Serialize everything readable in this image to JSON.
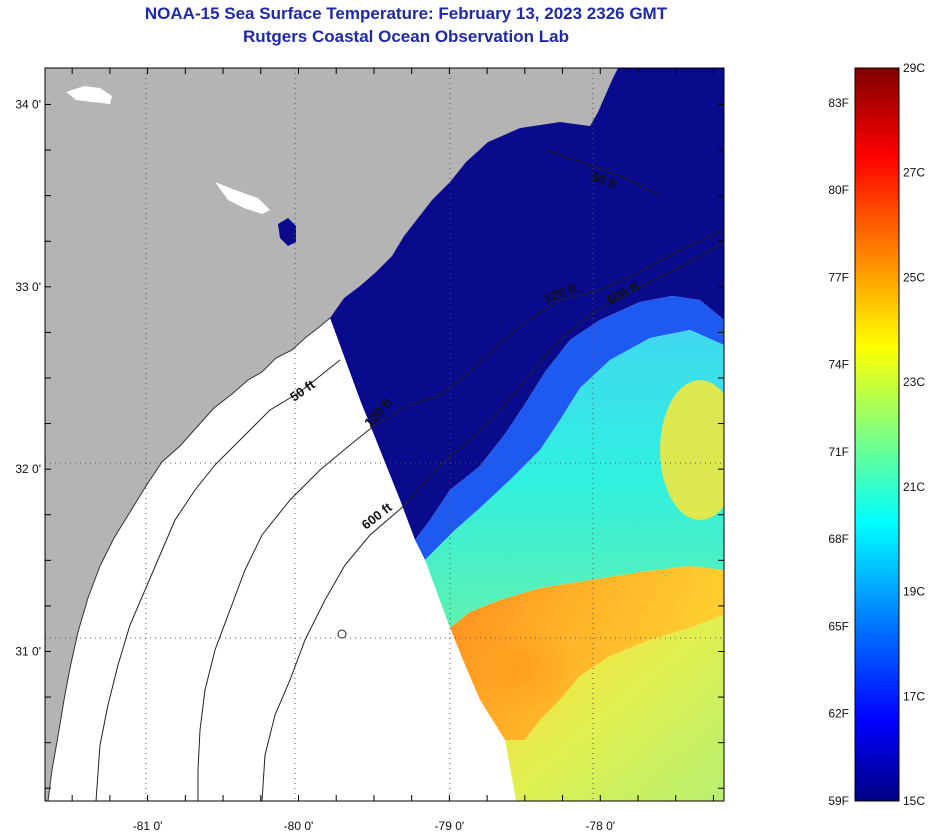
{
  "title_line1": "NOAA-15 Sea Surface Temperature:  February 13, 2023 2326 GMT",
  "title_line2": "Rutgers Coastal Ocean Observation Lab",
  "map": {
    "lat_ticks": [
      {
        "value": 34,
        "label": "34 0'"
      },
      {
        "value": 33,
        "label": "33 0'"
      },
      {
        "value": 32,
        "label": "32 0'"
      },
      {
        "value": 31,
        "label": "31 0'"
      }
    ],
    "lon_ticks": [
      {
        "value": -81,
        "label": "-81 0'"
      },
      {
        "value": -80,
        "label": "-80 0'"
      },
      {
        "value": -79,
        "label": "-79 0'"
      },
      {
        "value": -78,
        "label": "-78 0'"
      }
    ],
    "lat_range": [
      30.18,
      34.2
    ],
    "lon_range": [
      -81.68,
      -77.18
    ],
    "contour_labels": [
      {
        "id": "c50-north",
        "text": "50 ft"
      },
      {
        "id": "c120-north",
        "text": "120 ft"
      },
      {
        "id": "c600-north",
        "text": "600 ft"
      },
      {
        "id": "c50-south",
        "text": "50 ft"
      },
      {
        "id": "c120-south",
        "text": "120 ft"
      },
      {
        "id": "c600-south",
        "text": "600 ft"
      }
    ],
    "colors": {
      "land": "#b4b4b4",
      "no_data": "#ffffff",
      "cold_water": "#0a0a8c",
      "grid": "#555555"
    }
  },
  "colorbar": {
    "fahrenheit": [
      "83F",
      "80F",
      "77F",
      "74F",
      "71F",
      "68F",
      "65F",
      "62F",
      "59F"
    ],
    "celsius": [
      "29C",
      "27C",
      "25C",
      "23C",
      "21C",
      "19C",
      "17C",
      "15C"
    ],
    "min_c": 15,
    "max_c": 29
  }
}
